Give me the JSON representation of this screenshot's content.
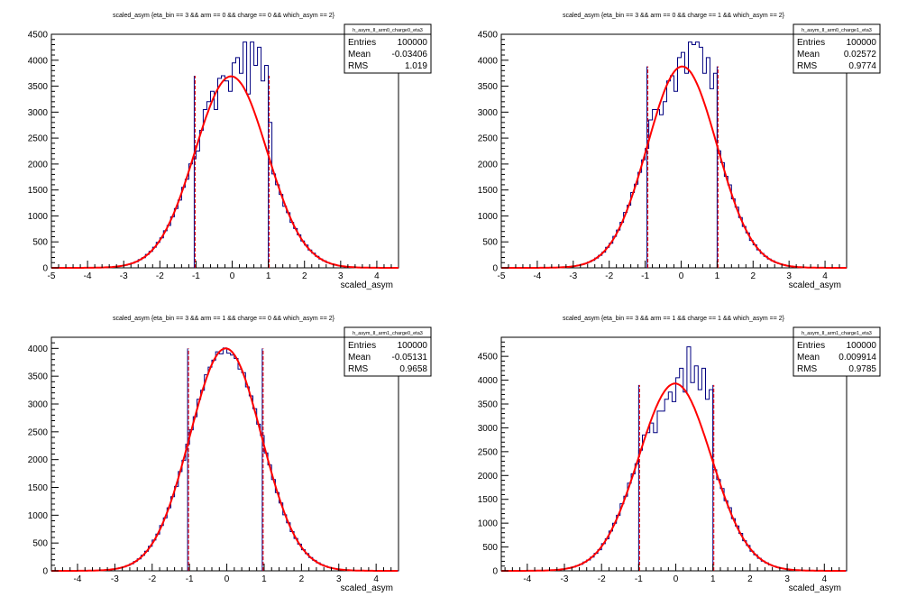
{
  "chart_data": [
    {
      "type": "histogram",
      "title": "scaled_asym {eta_bin == 3 && arm == 0 && charge == 0 && which_asym == 2}",
      "xlabel": "scaled_asym",
      "stats": {
        "name": "h_asym_II_arm0_charge0_eta3",
        "entries_label": "Entries",
        "entries": "100000",
        "mean_label": "Mean",
        "mean": "-0.03406",
        "rms_label": "RMS",
        "rms": "1.019"
      },
      "xlim": [
        -5,
        4.6
      ],
      "ylim": [
        0,
        4500
      ],
      "xticks": [
        -5,
        -4,
        -3,
        -2,
        -1,
        0,
        1,
        2,
        3,
        4
      ],
      "yticks": [
        0,
        500,
        1000,
        1500,
        2000,
        2500,
        3000,
        3500,
        4000,
        4500
      ],
      "gauss": {
        "A": 3690,
        "mu": -0.03,
        "sigma": 1.0
      },
      "cut_lines": [
        {
          "x": -1.05,
          "ymax": 3700
        },
        {
          "x": 1.0,
          "ymax": 3700
        }
      ],
      "core_bins": {
        "start": -1.1,
        "width": 0.1,
        "values": [
          2100,
          2250,
          2650,
          3050,
          3200,
          3400,
          3050,
          3650,
          3700,
          3600,
          3400,
          3950,
          4050,
          3750,
          4350,
          3350,
          4350,
          3900,
          4250,
          3600,
          3900,
          2800
        ]
      }
    },
    {
      "type": "histogram",
      "title": "scaled_asym {eta_bin == 3 && arm == 0 && charge == 1 && which_asym == 2}",
      "xlabel": "scaled_asym",
      "stats": {
        "name": "h_asym_II_arm0_charge1_eta3",
        "entries_label": "Entries",
        "entries": "100000",
        "mean_label": "Mean",
        "mean": "0.02572",
        "rms_label": "RMS",
        "rms": "0.9774"
      },
      "xlim": [
        -5,
        4.6
      ],
      "ylim": [
        0,
        4500
      ],
      "xticks": [
        -5,
        -4,
        -3,
        -2,
        -1,
        0,
        1,
        2,
        3,
        4
      ],
      "yticks": [
        0,
        500,
        1000,
        1500,
        2000,
        2500,
        3000,
        3500,
        4000,
        4500
      ],
      "gauss": {
        "A": 3880,
        "mu": 0.03,
        "sigma": 0.97
      },
      "cut_lines": [
        {
          "x": -0.95,
          "ymax": 3880
        },
        {
          "x": 1.0,
          "ymax": 3880
        }
      ],
      "core_bins": {
        "start": -1.0,
        "width": 0.1,
        "values": [
          2300,
          2850,
          3050,
          3050,
          2950,
          3200,
          3600,
          3700,
          3400,
          4050,
          4150,
          3750,
          4350,
          4300,
          4350,
          4250,
          3750,
          4050,
          3450,
          3750
        ]
      }
    },
    {
      "type": "histogram",
      "title": "scaled_asym {eta_bin == 3 && arm == 1 && charge == 0 && which_asym == 2}",
      "xlabel": "scaled_asym",
      "stats": {
        "name": "h_asym_II_arm1_charge0_eta3",
        "entries_label": "Entries",
        "entries": "100000",
        "mean_label": "Mean",
        "mean": "-0.05131",
        "rms_label": "RMS",
        "rms": "0.9658"
      },
      "xlim": [
        -4.7,
        4.6
      ],
      "ylim": [
        0,
        4200
      ],
      "xticks": [
        -4,
        -3,
        -2,
        -1,
        0,
        1,
        2,
        3,
        4
      ],
      "yticks": [
        0,
        500,
        1000,
        1500,
        2000,
        2500,
        3000,
        3500,
        4000
      ],
      "gauss": {
        "A": 4000,
        "mu": -0.03,
        "sigma": 0.96
      },
      "cut_lines": [
        {
          "x": -1.05,
          "ymax": 4000
        },
        {
          "x": 0.95,
          "ymax": 4000
        }
      ],
      "core_bins": null
    },
    {
      "type": "histogram",
      "title": "scaled_asym {eta_bin == 3 && arm == 1 && charge == 1 && which_asym == 2}",
      "xlabel": "scaled_asym",
      "stats": {
        "name": "h_asym_II_arm1_charge1_eta3",
        "entries_label": "Entries",
        "entries": "100000",
        "mean_label": "Mean",
        "mean": "0.009914",
        "rms_label": "RMS",
        "rms": "0.9785"
      },
      "xlim": [
        -4.7,
        4.6
      ],
      "ylim": [
        0,
        4900
      ],
      "xticks": [
        -4,
        -3,
        -2,
        -1,
        0,
        1,
        2,
        3,
        4
      ],
      "yticks": [
        0,
        500,
        1000,
        1500,
        2000,
        2500,
        3000,
        3500,
        4000,
        4500
      ],
      "gauss": {
        "A": 3930,
        "mu": -0.02,
        "sigma": 0.98
      },
      "cut_lines": [
        {
          "x": -1.0,
          "ymax": 3900
        },
        {
          "x": 1.0,
          "ymax": 3900
        }
      ],
      "core_bins": {
        "start": -0.9,
        "width": 0.1,
        "values": [
          2850,
          2900,
          3100,
          2900,
          3350,
          3350,
          3600,
          3750,
          3550,
          4050,
          4250,
          3750,
          4700,
          3950,
          4300,
          3800,
          4250,
          3600,
          3800
        ]
      }
    }
  ]
}
